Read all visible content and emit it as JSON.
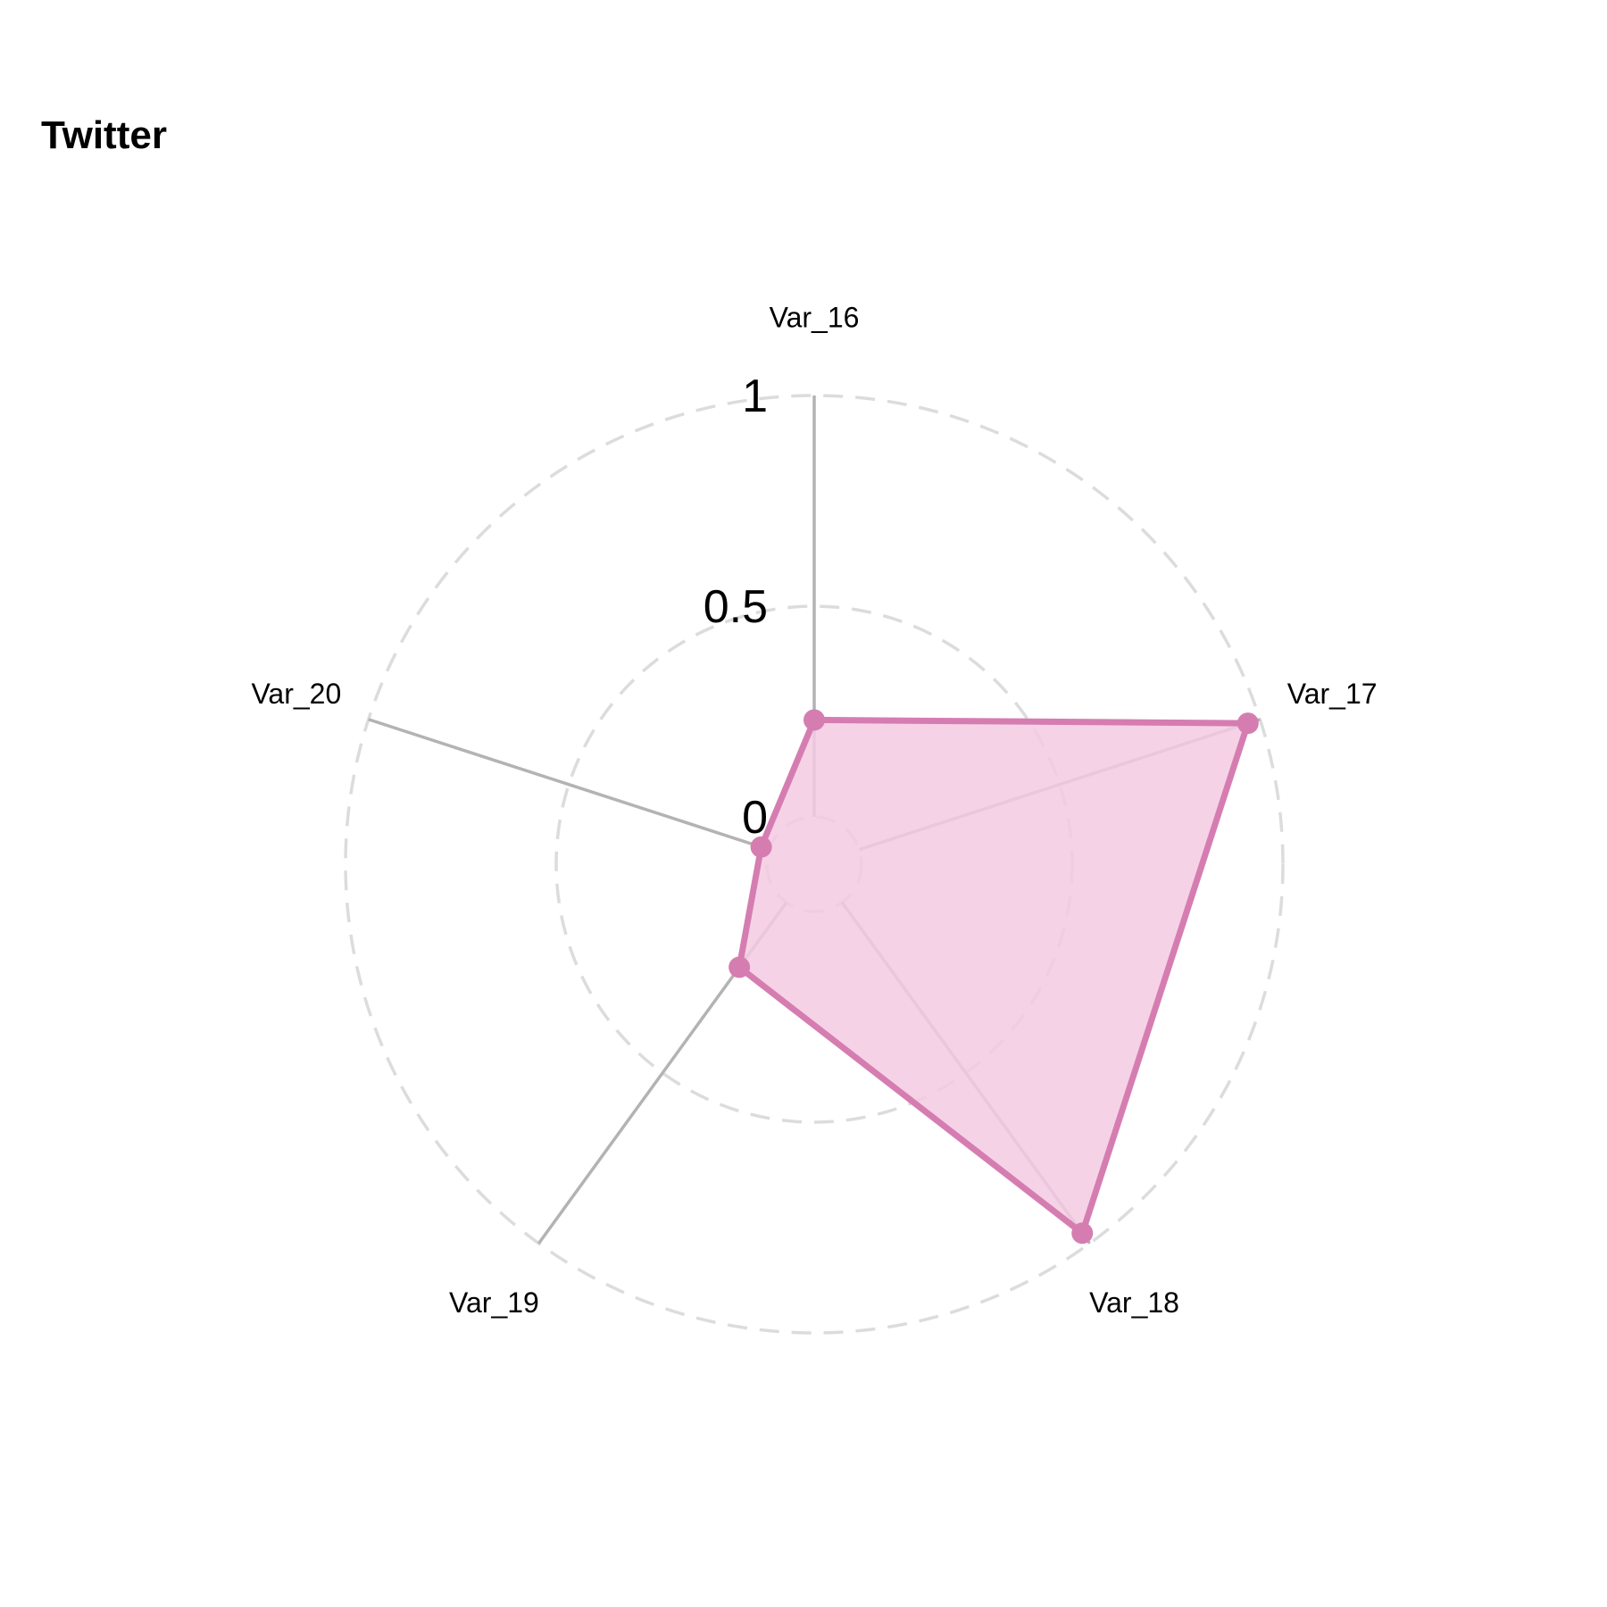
{
  "chart_data": {
    "type": "radar",
    "title": "Twitter",
    "axes": [
      "Var_16",
      "Var_17",
      "Var_18",
      "Var_19",
      "Var_20"
    ],
    "series": [
      {
        "values": [
          0.23,
          0.97,
          0.97,
          0.19,
          0.02
        ]
      }
    ],
    "range": [
      0,
      1
    ],
    "ticks": [
      {
        "label": "0",
        "value": 0
      },
      {
        "label": "0.5",
        "value": 0.5
      },
      {
        "label": "1",
        "value": 1
      }
    ],
    "grid": "dashed circles",
    "colors": {
      "series": "#d57db1",
      "fill": "#f5cae2",
      "axis": "#b3b3b3",
      "grid": "#dcdcdc"
    }
  }
}
